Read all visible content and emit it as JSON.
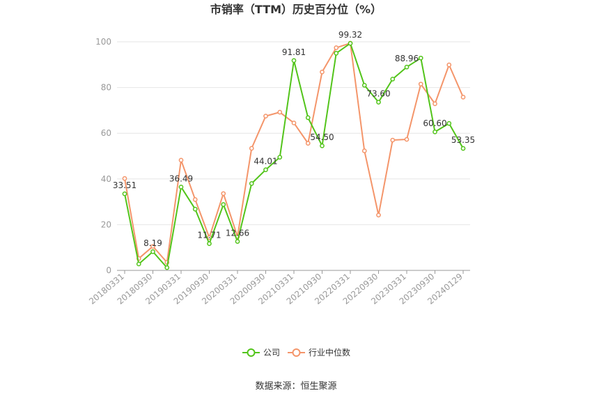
{
  "chart_data": {
    "type": "line",
    "title": "市销率（TTM）历史百分位（%）",
    "xlabel": "",
    "ylabel": "",
    "ylim": [
      0,
      100
    ],
    "yticks": [
      0,
      20,
      40,
      60,
      80,
      100
    ],
    "grid": true,
    "legend": "bottom",
    "x": [
      "20180331",
      "20180630",
      "20180930",
      "20181231",
      "20190331",
      "20190630",
      "20190930",
      "20191231",
      "20200331",
      "20200630",
      "20200930",
      "20201231",
      "20210331",
      "20210630",
      "20210930",
      "20211231",
      "20220331",
      "20220630",
      "20220930",
      "20221231",
      "20230331",
      "20230630",
      "20230930",
      "20231231",
      "20240129"
    ],
    "x_tick_labels": [
      "20180331",
      "20180930",
      "20190331",
      "20190930",
      "20200331",
      "20200930",
      "20210331",
      "20210930",
      "20220331",
      "20220930",
      "20230331",
      "20230930",
      "20240129"
    ],
    "series": [
      {
        "name": "公司",
        "color": "#52c41a",
        "values": [
          33.51,
          2.8,
          8.19,
          1.2,
          36.49,
          26.8,
          11.71,
          28.8,
          12.66,
          38.0,
          44.01,
          49.5,
          91.81,
          66.8,
          54.5,
          95.0,
          99.32,
          81.0,
          73.6,
          83.7,
          88.96,
          92.9,
          60.6,
          64.3,
          53.35
        ],
        "data_labels": [
          {
            "index": 0,
            "text": "33.51"
          },
          {
            "index": 2,
            "text": "8.19"
          },
          {
            "index": 4,
            "text": "36.49"
          },
          {
            "index": 6,
            "text": "11.71"
          },
          {
            "index": 8,
            "text": "12.66"
          },
          {
            "index": 10,
            "text": "44.01"
          },
          {
            "index": 12,
            "text": "91.81"
          },
          {
            "index": 14,
            "text": "54.50"
          },
          {
            "index": 16,
            "text": "99.32"
          },
          {
            "index": 18,
            "text": "73.60"
          },
          {
            "index": 20,
            "text": "88.96"
          },
          {
            "index": 22,
            "text": "60.60"
          },
          {
            "index": 24,
            "text": "53.35"
          }
        ]
      },
      {
        "name": "行业中位数",
        "color": "#f4956a",
        "values": [
          40.2,
          5.2,
          10.5,
          3.5,
          48.2,
          31.0,
          14.4,
          33.6,
          14.8,
          53.4,
          67.5,
          69.2,
          64.5,
          55.6,
          86.8,
          97.4,
          99.4,
          52.3,
          24.2,
          57.0,
          57.3,
          81.5,
          72.9,
          89.9,
          75.8
        ]
      }
    ]
  },
  "source": "数据来源：恒生聚源"
}
